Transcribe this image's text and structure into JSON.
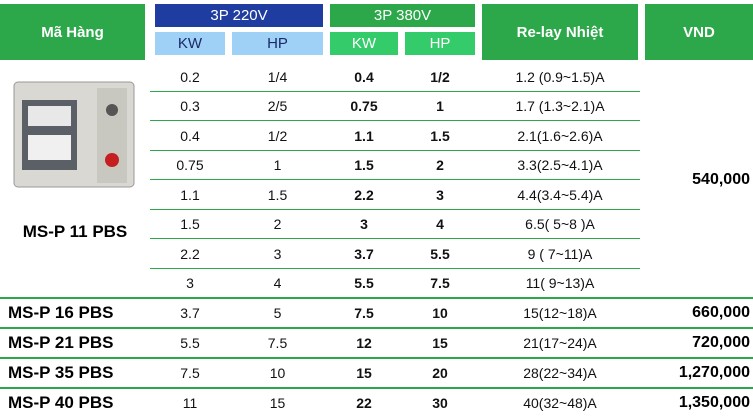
{
  "header": {
    "product": "Mã Hàng",
    "group_220": "3P 220V",
    "group_380": "3P 380V",
    "kw_220": "KW",
    "hp_220": "HP",
    "kw_380": "KW",
    "hp_380": "HP",
    "relay": "Re-lay Nhiệt",
    "price": "VND"
  },
  "groups": [
    {
      "product": "MS-P 11 PBS",
      "price": "540,000",
      "rows": [
        [
          "0.2",
          "1/4",
          "0.4",
          "1/2",
          "1.2 (0.9~1.5)A"
        ],
        [
          "0.3",
          "2/5",
          "0.75",
          "1",
          "1.7 (1.3~2.1)A"
        ],
        [
          "0.4",
          "1/2",
          "1.1",
          "1.5",
          "2.1(1.6~2.6)A"
        ],
        [
          "0.75",
          "1",
          "1.5",
          "2",
          "3.3(2.5~4.1)A"
        ],
        [
          "1.1",
          "1.5",
          "2.2",
          "3",
          "4.4(3.4~5.4)A"
        ],
        [
          "1.5",
          "2",
          "3",
          "4",
          "6.5( 5~8 )A"
        ],
        [
          "2.2",
          "3",
          "3.7",
          "5.5",
          "9 ( 7~11)A"
        ],
        [
          "3",
          "4",
          "5.5",
          "7.5",
          "11( 9~13)A"
        ]
      ]
    },
    {
      "product": "MS-P 16 PBS",
      "price": "660,000",
      "rows": [
        [
          "3.7",
          "5",
          "7.5",
          "10",
          "15(12~18)A"
        ]
      ]
    },
    {
      "product": "MS-P 21 PBS",
      "price": "720,000",
      "rows": [
        [
          "5.5",
          "7.5",
          "12",
          "15",
          "21(17~24)A"
        ]
      ]
    },
    {
      "product": "MS-P 35 PBS",
      "price": "1,270,000",
      "rows": [
        [
          "7.5",
          "10",
          "15",
          "20",
          "28(22~34)A"
        ]
      ]
    },
    {
      "product": "MS-P 40 PBS",
      "price": "1,350,000",
      "rows": [
        [
          "11",
          "15",
          "22",
          "30",
          "40(32~48)A"
        ]
      ]
    }
  ]
}
